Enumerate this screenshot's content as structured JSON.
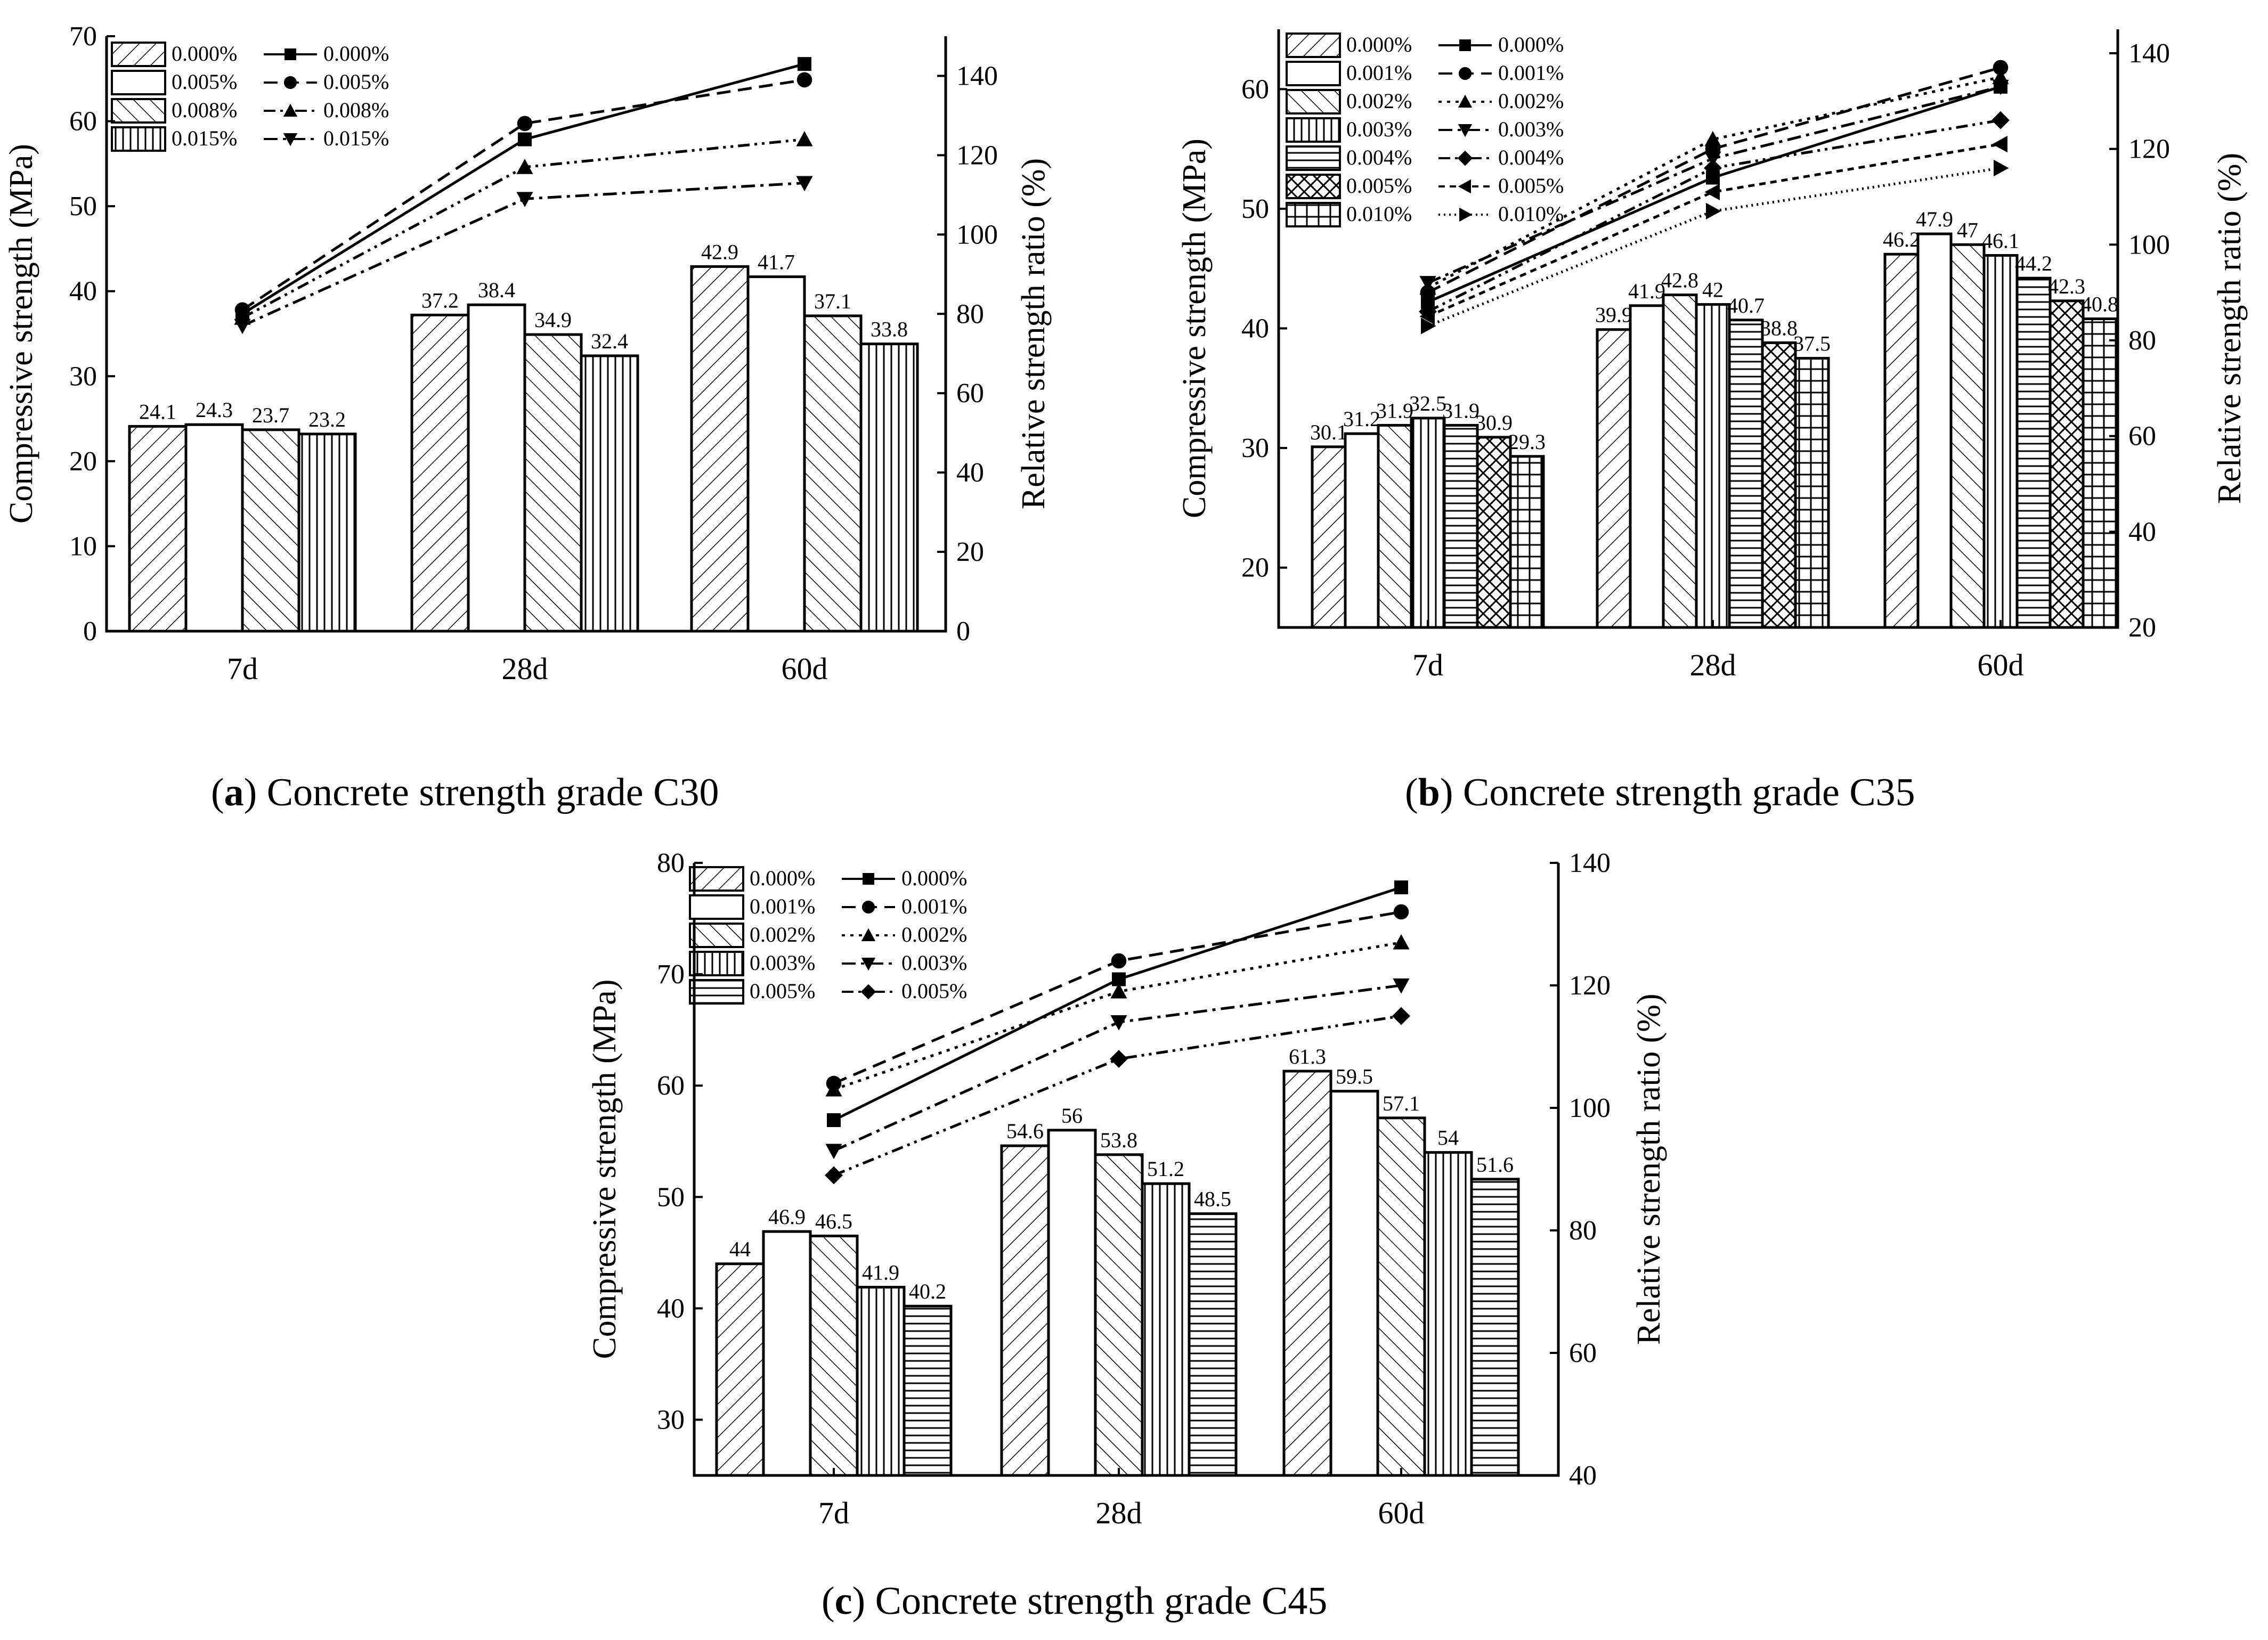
{
  "chart_data": [
    {
      "type": "bar",
      "caption_letter": "a",
      "caption_text": ") Concrete strength grade C30",
      "ylabel": "Compressive strength (MPa)",
      "y2label": "Relative strength ratio (%)",
      "categories": [
        "7d",
        "28d",
        "60d"
      ],
      "ylim": [
        0,
        70
      ],
      "y2lim": [
        0,
        150
      ],
      "yticks": [
        "0",
        "10",
        "20",
        "30",
        "40",
        "50",
        "60",
        "70"
      ],
      "y2ticks": [
        "0",
        "20",
        "40",
        "60",
        "80",
        "100",
        "120",
        "140"
      ],
      "bar_series": [
        {
          "name": "0.000%",
          "pattern": "diag",
          "values": [
            24.1,
            37.2,
            42.9
          ],
          "labels": [
            "24.1",
            "37.2",
            "42.9"
          ]
        },
        {
          "name": "0.005%",
          "pattern": "blank",
          "values": [
            24.3,
            38.4,
            41.7
          ],
          "labels": [
            "24.3",
            "38.4",
            "41.7"
          ]
        },
        {
          "name": "0.008%",
          "pattern": "back",
          "values": [
            23.7,
            34.9,
            37.1
          ],
          "labels": [
            "23.7",
            "34.9",
            "37.1"
          ]
        },
        {
          "name": "0.015%",
          "pattern": "vert",
          "values": [
            23.2,
            32.4,
            33.8
          ],
          "labels": [
            "23.2",
            "32.4",
            "33.8"
          ]
        }
      ],
      "line_series": [
        {
          "name": "0.000%",
          "marker": "square",
          "dash": "solid",
          "values": [
            80,
            124,
            143
          ]
        },
        {
          "name": "0.005%",
          "marker": "circle",
          "dash": "dashed",
          "values": [
            81,
            128,
            139
          ]
        },
        {
          "name": "0.008%",
          "marker": "triangle-up",
          "dash": "dashdotdot",
          "values": [
            79,
            117,
            124
          ]
        },
        {
          "name": "0.015%",
          "marker": "triangle-down",
          "dash": "dashdot",
          "values": [
            77,
            109,
            113
          ]
        }
      ]
    },
    {
      "type": "bar",
      "caption_letter": "b",
      "caption_text": ") Concrete strength grade C35",
      "ylabel": "Compressive strength (MPa)",
      "y2label": "Relative strength ratio (%)",
      "categories": [
        "7d",
        "28d",
        "60d"
      ],
      "ylim": [
        15,
        65
      ],
      "y2lim": [
        20,
        145
      ],
      "yticks": [
        "20",
        "30",
        "40",
        "50",
        "60"
      ],
      "y2ticks": [
        "20",
        "40",
        "60",
        "80",
        "100",
        "120",
        "140"
      ],
      "bar_series": [
        {
          "name": "0.000%",
          "pattern": "diag",
          "values": [
            30.1,
            39.9,
            46.2
          ],
          "labels": [
            "30.1",
            "39.9",
            "46.2"
          ]
        },
        {
          "name": "0.001%",
          "pattern": "blank",
          "values": [
            31.2,
            41.9,
            47.9
          ],
          "labels": [
            "31.2",
            "41.9",
            "47.9"
          ]
        },
        {
          "name": "0.002%",
          "pattern": "back",
          "values": [
            31.9,
            42.8,
            47
          ],
          "labels": [
            "31.9",
            "42.8",
            "47"
          ]
        },
        {
          "name": "0.003%",
          "pattern": "vert",
          "values": [
            32.5,
            42,
            46.1
          ],
          "labels": [
            "32.5",
            "42",
            "46.1"
          ]
        },
        {
          "name": "0.004%",
          "pattern": "horiz",
          "values": [
            31.9,
            40.7,
            44.2
          ],
          "labels": [
            "31.9",
            "40.7",
            "44.2"
          ]
        },
        {
          "name": "0.005%",
          "pattern": "cross",
          "values": [
            30.9,
            38.8,
            42.3
          ],
          "labels": [
            "30.9",
            "38.8",
            "42.3"
          ]
        },
        {
          "name": "0.010%",
          "pattern": "grid",
          "values": [
            29.3,
            37.5,
            40.8
          ],
          "labels": [
            "29.3",
            "37.5",
            "40.8"
          ]
        }
      ],
      "line_series": [
        {
          "name": "0.000%",
          "marker": "square",
          "dash": "solid",
          "values": [
            88,
            114,
            133
          ]
        },
        {
          "name": "0.001%",
          "marker": "circle",
          "dash": "dashed",
          "values": [
            90,
            120,
            137
          ]
        },
        {
          "name": "0.002%",
          "marker": "triangle-up",
          "dash": "dotted",
          "values": [
            91,
            122,
            135
          ]
        },
        {
          "name": "0.003%",
          "marker": "triangle-down",
          "dash": "dashdot",
          "values": [
            92,
            118,
            133
          ]
        },
        {
          "name": "0.004%",
          "marker": "diamond",
          "dash": "dashdotdot",
          "values": [
            86,
            116,
            126
          ]
        },
        {
          "name": "0.005%",
          "marker": "triangle-left",
          "dash": "shortdash",
          "values": [
            85,
            111,
            121
          ]
        },
        {
          "name": "0.010%",
          "marker": "triangle-right",
          "dash": "finedot",
          "values": [
            83,
            107,
            116
          ]
        }
      ]
    },
    {
      "type": "bar",
      "caption_letter": "c",
      "caption_text": ") Concrete strength grade C45",
      "ylabel": "Compressive strength (MPa)",
      "y2label": "Relative strength ratio (%)",
      "categories": [
        "7d",
        "28d",
        "60d"
      ],
      "ylim": [
        25,
        80
      ],
      "y2lim": [
        40,
        140
      ],
      "yticks": [
        "30",
        "40",
        "50",
        "60",
        "70",
        "80"
      ],
      "y2ticks": [
        "40",
        "60",
        "80",
        "100",
        "120",
        "140"
      ],
      "bar_series": [
        {
          "name": "0.000%",
          "pattern": "diag",
          "values": [
            44,
            54.6,
            61.3
          ],
          "labels": [
            "44",
            "54.6",
            "61.3"
          ]
        },
        {
          "name": "0.001%",
          "pattern": "blank",
          "values": [
            46.9,
            56,
            59.5
          ],
          "labels": [
            "46.9",
            "56",
            "59.5"
          ]
        },
        {
          "name": "0.002%",
          "pattern": "back",
          "values": [
            46.5,
            53.8,
            57.1
          ],
          "labels": [
            "46.5",
            "53.8",
            "57.1"
          ]
        },
        {
          "name": "0.003%",
          "pattern": "vert",
          "values": [
            41.9,
            51.2,
            54
          ],
          "labels": [
            "41.9",
            "51.2",
            "54"
          ]
        },
        {
          "name": "0.005%",
          "pattern": "horiz",
          "values": [
            40.2,
            48.5,
            51.6
          ],
          "labels": [
            "40.2",
            "48.5",
            "51.6"
          ]
        }
      ],
      "line_series": [
        {
          "name": "0.000%",
          "marker": "square",
          "dash": "solid",
          "values": [
            98,
            121,
            136
          ]
        },
        {
          "name": "0.001%",
          "marker": "circle",
          "dash": "dashed",
          "values": [
            104,
            124,
            132
          ]
        },
        {
          "name": "0.002%",
          "marker": "triangle-up",
          "dash": "dotted",
          "values": [
            103,
            119,
            127
          ]
        },
        {
          "name": "0.003%",
          "marker": "triangle-down",
          "dash": "dashdot",
          "values": [
            93,
            114,
            120
          ]
        },
        {
          "name": "0.005%",
          "marker": "diamond",
          "dash": "dashdotdot",
          "values": [
            89,
            108,
            115
          ]
        }
      ]
    }
  ]
}
